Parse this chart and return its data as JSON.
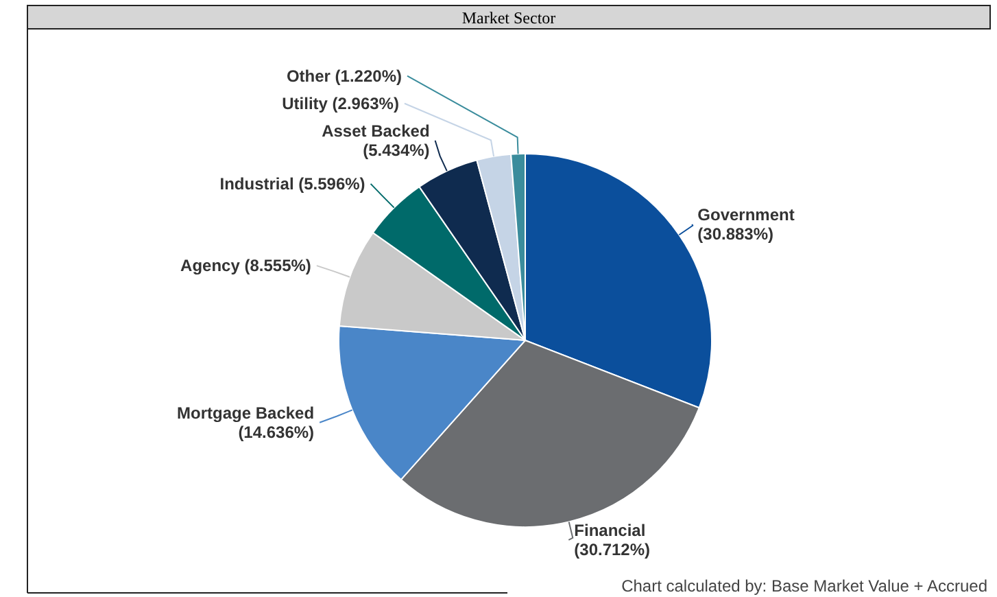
{
  "chart_data": {
    "type": "pie",
    "title": "Market Sector",
    "categories": [
      "Government",
      "Financial",
      "Mortgage Backed",
      "Agency",
      "Industrial",
      "Asset Backed",
      "Utility",
      "Other"
    ],
    "values": [
      30.883,
      30.712,
      14.636,
      8.555,
      5.596,
      5.434,
      2.963,
      1.22
    ],
    "value_labels": [
      "(30.883%)",
      "(30.712%)",
      "(14.636%)",
      "(8.555%)",
      "(5.596%)",
      "(5.434%)",
      "(2.963%)",
      "(1.220%)"
    ],
    "colors": [
      "#0b4f9c",
      "#6b6d70",
      "#4a86c8",
      "#c9c9c9",
      "#006a6a",
      "#0f2b4f",
      "#c5d4e6",
      "#3a8c9c"
    ],
    "annotations": [
      "Chart calculated by: Base Market Value + Accrued"
    ]
  }
}
